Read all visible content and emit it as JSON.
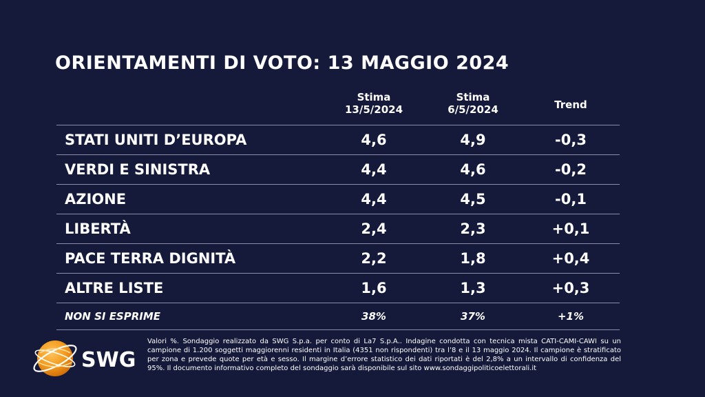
{
  "title": "ORIENTAMENTI DI VOTO: 13 MAGGIO 2024",
  "columns": [
    {
      "line1": "Stima",
      "line2": "13/5/2024"
    },
    {
      "line1": "Stima",
      "line2": "6/5/2024"
    },
    {
      "line1": "Trend",
      "line2": ""
    }
  ],
  "chart_data": {
    "type": "table",
    "title": "ORIENTAMENTI DI VOTO: 13 MAGGIO 2024",
    "columns": [
      "Stima 13/5/2024",
      "Stima 6/5/2024",
      "Trend"
    ],
    "rows": [
      {
        "label": "STATI UNITI D’EUROPA",
        "values": [
          "4,6",
          "4,9",
          "-0,3"
        ]
      },
      {
        "label": "VERDI E SINISTRA",
        "values": [
          "4,4",
          "4,6",
          "-0,2"
        ]
      },
      {
        "label": "AZIONE",
        "values": [
          "4,4",
          "4,5",
          "-0,1"
        ]
      },
      {
        "label": "LIBERTÀ",
        "values": [
          "2,4",
          "2,3",
          "+0,1"
        ]
      },
      {
        "label": "PACE TERRA DIGNITÀ",
        "values": [
          "2,2",
          "1,8",
          "+0,4"
        ]
      },
      {
        "label": "ALTRE LISTE",
        "values": [
          "1,6",
          "1,3",
          "+0,3"
        ]
      },
      {
        "label": "NON SI ESPRIME",
        "values": [
          "38%",
          "37%",
          "+1%"
        ]
      }
    ]
  },
  "logo": {
    "text": "SWG"
  },
  "note": "Valori %. Sondaggio realizzato da SWG S.p.a. per conto di La7 S.p.A.. Indagine condotta con tecnica mista CATI-CAMI-CAWI su un campione di 1.200 soggetti maggiorenni residenti in Italia (4351 non rispondenti) tra l’8 e il 13 maggio 2024. Il campione è stratificato per zona e prevede quote per età e sesso. Il margine d’errore statistico dei dati riportati è del 2,8% a un intervallo di confidenza del 95%. Il documento informativo completo del sondaggio sarà disponibile sul sito www.sondaggipoliticoelettorali.it",
  "colors": {
    "background": "#151a3a",
    "text": "#ffffff",
    "rule": "#8a8ea8",
    "logo_orange": "#f39a1e"
  }
}
